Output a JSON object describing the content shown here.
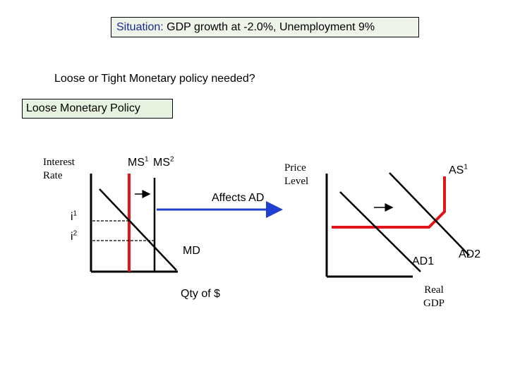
{
  "situation": {
    "label": "Situation:",
    "text": "GDP growth at -2.0%, Unemployment 9%"
  },
  "question": "Loose or Tight Monetary policy needed?",
  "policy": "Loose  Monetary Policy",
  "money_market": {
    "y_axis_label_line1": "Interest",
    "y_axis_label_line2": "Rate",
    "ms1_label": "MS",
    "ms1_sub": "1",
    "ms2_label": "MS",
    "ms2_sub": "2",
    "i1_label": "i",
    "i1_sub": "1",
    "i2_label": "i",
    "i2_sub": "2",
    "md_label": "MD",
    "x_axis_label": "Qty of $"
  },
  "link_label": "Affects AD",
  "ad_as_model": {
    "y_axis_label_line1": "Price",
    "y_axis_label_line2": "Level",
    "as_label": "AS",
    "as_sub": "1",
    "ad1_label": "AD1",
    "ad2_label": "AD2",
    "x_axis_label_line1": "Real",
    "x_axis_label_line2": "GDP"
  },
  "colors": {
    "curve_red": "#e0161b",
    "arrow_blue": "#1f3fd0",
    "axis": "#000000",
    "box_bg": "#eef4ea"
  }
}
